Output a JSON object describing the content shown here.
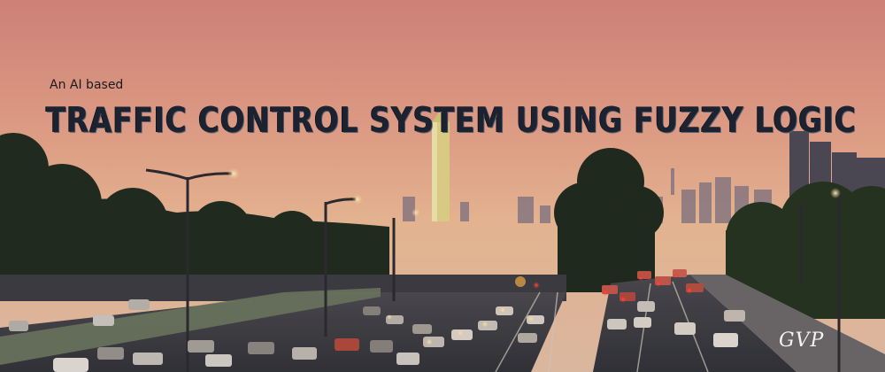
{
  "banner": {
    "subtitle": "An AI based",
    "title": "TRAFFIC CONTROL SYSTEM USING FUZZY LOGIC",
    "signature": "GVP"
  },
  "colors": {
    "sky_top": "#e89a86",
    "sky_horizon": "#f3c7a0",
    "trees": "#1c2a1c",
    "road": "#3a3d42",
    "title_text": "#1d2230"
  }
}
